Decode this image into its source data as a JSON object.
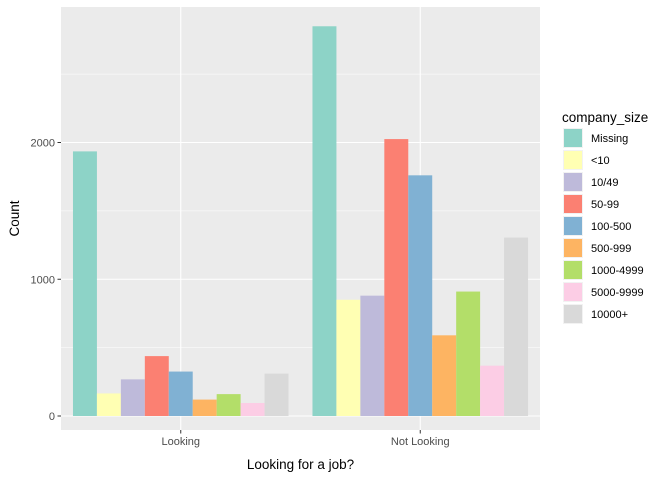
{
  "chart_data": {
    "type": "bar",
    "categories": [
      "Looking",
      "Not Looking"
    ],
    "series": [
      {
        "name": "Missing",
        "values": [
          1935,
          2850
        ],
        "color": "#8DD3C7"
      },
      {
        "name": "<10",
        "values": [
          165,
          850
        ],
        "color": "#FFFFB3"
      },
      {
        "name": "10/49",
        "values": [
          268,
          880
        ],
        "color": "#BEBADA"
      },
      {
        "name": "50-99",
        "values": [
          438,
          2025
        ],
        "color": "#FB8072"
      },
      {
        "name": "100-500",
        "values": [
          325,
          1760
        ],
        "color": "#80B1D3"
      },
      {
        "name": "500-999",
        "values": [
          120,
          590
        ],
        "color": "#FDB462"
      },
      {
        "name": "1000-4999",
        "values": [
          160,
          910
        ],
        "color": "#B3DE69"
      },
      {
        "name": "5000-9999",
        "values": [
          95,
          368
        ],
        "color": "#FCCDE5"
      },
      {
        "name": "10000+",
        "values": [
          310,
          1305
        ],
        "color": "#D9D9D9"
      }
    ],
    "xlabel": "Looking for a job?",
    "ylabel": "Count",
    "ylim": [
      0,
      2850
    ],
    "yticks": [
      0,
      1000,
      2000
    ],
    "grid": true,
    "legend_title": "company_size",
    "legend_position": "right",
    "panel_background": "#EBEBEB",
    "grid_color": "#FFFFFF"
  }
}
